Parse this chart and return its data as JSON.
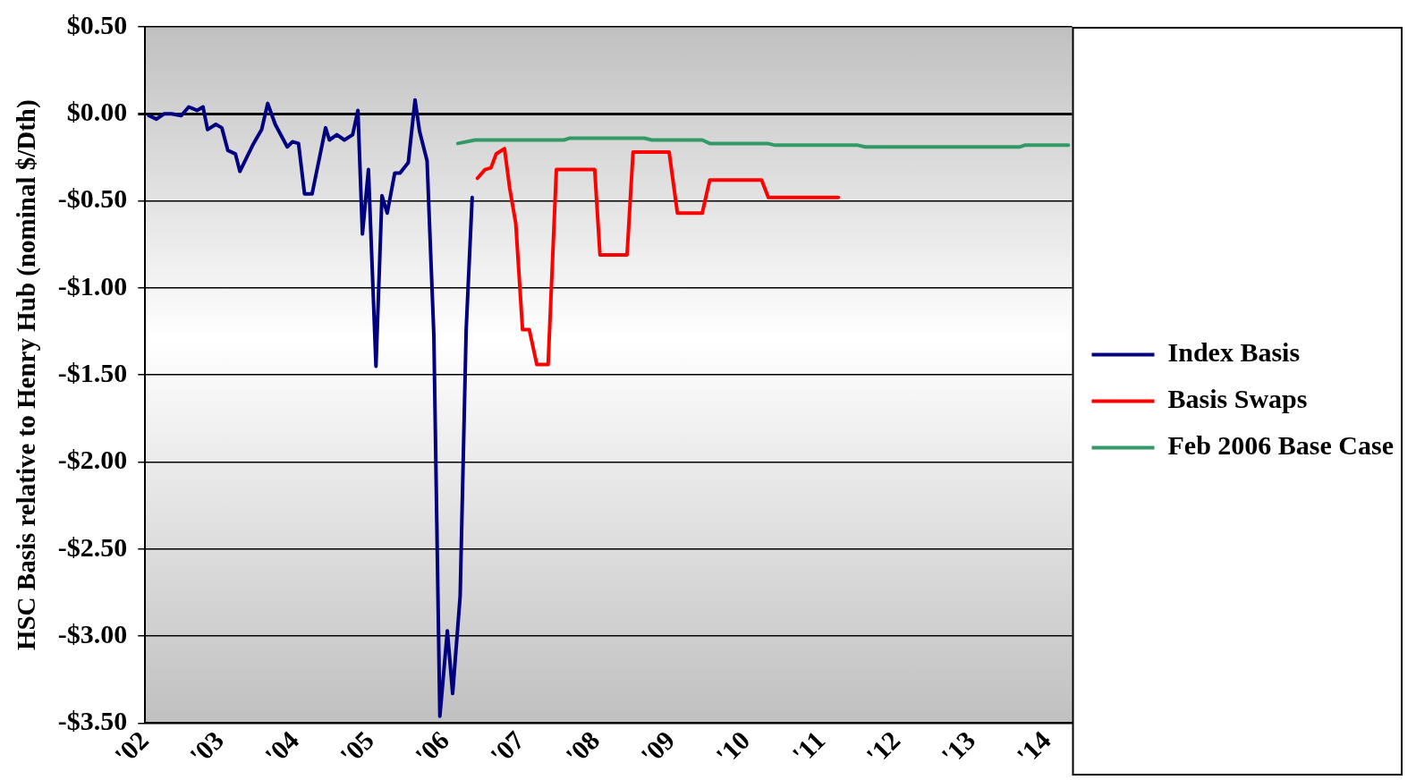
{
  "chart_data": {
    "type": "line",
    "ylabel": "HSC Basis relative to Henry Hub (nominal $/Dth)",
    "xlim": [
      2002,
      2014.33
    ],
    "xticks": [
      {
        "value": 2002,
        "label": "'02"
      },
      {
        "value": 2003,
        "label": "'03"
      },
      {
        "value": 2004,
        "label": "'04"
      },
      {
        "value": 2005,
        "label": "'05"
      },
      {
        "value": 2006,
        "label": "'06"
      },
      {
        "value": 2007,
        "label": "'07"
      },
      {
        "value": 2008,
        "label": "'08"
      },
      {
        "value": 2009,
        "label": "'09"
      },
      {
        "value": 2010,
        "label": "'10"
      },
      {
        "value": 2011,
        "label": "'11"
      },
      {
        "value": 2012,
        "label": "'12"
      },
      {
        "value": 2013,
        "label": "'13"
      },
      {
        "value": 2014,
        "label": "'14"
      }
    ],
    "ylim": [
      -3.5,
      0.5
    ],
    "yticks": [
      {
        "value": 0.5,
        "label": "$0.50"
      },
      {
        "value": 0,
        "label": "$0.00"
      },
      {
        "value": -0.5,
        "label": "-$0.50"
      },
      {
        "value": -1,
        "label": "-$1.00"
      },
      {
        "value": -1.5,
        "label": "-$1.50"
      },
      {
        "value": -2,
        "label": "-$2.00"
      },
      {
        "value": -2.5,
        "label": "-$2.50"
      },
      {
        "value": -3,
        "label": "-$3.00"
      },
      {
        "value": -3.5,
        "label": "-$3.50"
      }
    ],
    "grid": "y",
    "legend": "right",
    "marker": "none",
    "line_style": "solid",
    "series": [
      {
        "name": "Index Basis",
        "color": "#000080",
        "x": [
          2002.05,
          2002.15,
          2002.25,
          2002.35,
          2002.48,
          2002.58,
          2002.69,
          2002.77,
          2002.83,
          2002.94,
          2003.02,
          2003.1,
          2003.2,
          2003.26,
          2003.43,
          2003.55,
          2003.63,
          2003.73,
          2003.89,
          2003.96,
          2004.04,
          2004.12,
          2004.22,
          2004.4,
          2004.45,
          2004.55,
          2004.65,
          2004.76,
          2004.83,
          2004.89,
          2004.97,
          2005.07,
          2005.15,
          2005.22,
          2005.32,
          2005.39,
          2005.5,
          2005.59,
          2005.65,
          2005.75,
          2005.84,
          2005.92,
          2006.02,
          2006.09,
          2006.19,
          2006.27,
          2006.35
        ],
        "values": [
          -0.01,
          -0.03,
          0,
          0,
          -0.01,
          0.04,
          0.02,
          0.04,
          -0.09,
          -0.06,
          -0.08,
          -0.21,
          -0.23,
          -0.33,
          -0.18,
          -0.09,
          0.06,
          -0.06,
          -0.19,
          -0.16,
          -0.17,
          -0.46,
          -0.46,
          -0.08,
          -0.15,
          -0.12,
          -0.15,
          -0.12,
          0.02,
          -0.69,
          -0.32,
          -1.45,
          -0.47,
          -0.57,
          -0.34,
          -0.34,
          -0.28,
          0.08,
          -0.1,
          -0.27,
          -1.27,
          -3.46,
          -2.97,
          -3.33,
          -2.77,
          -1.24,
          -0.48
        ]
      },
      {
        "name": "Basis Swaps",
        "color": "#ff0000",
        "x": [
          2006.42,
          2006.52,
          2006.6,
          2006.67,
          2006.78,
          2006.85,
          2006.93,
          2007.02,
          2007.11,
          2007.21,
          2007.36,
          2007.47,
          2007.98,
          2008.05,
          2008.41,
          2008.49,
          2008.97,
          2009.08,
          2009.41,
          2009.51,
          2010.2,
          2010.29,
          2011.22
        ],
        "values": [
          -0.37,
          -0.32,
          -0.31,
          -0.23,
          -0.2,
          -0.43,
          -0.63,
          -1.24,
          -1.24,
          -1.44,
          -1.44,
          -0.32,
          -0.32,
          -0.81,
          -0.81,
          -0.22,
          -0.22,
          -0.57,
          -0.57,
          -0.38,
          -0.38,
          -0.48,
          -0.48
        ]
      },
      {
        "name": "Feb 2006 Base Case",
        "color": "#339966",
        "x": [
          2006.16,
          2006.39,
          2007.57,
          2007.64,
          2008.64,
          2008.74,
          2009.41,
          2009.51,
          2010.28,
          2010.38,
          2011.48,
          2011.58,
          2013.63,
          2013.7,
          2014.28
        ],
        "values": [
          -0.17,
          -0.15,
          -0.15,
          -0.14,
          -0.14,
          -0.15,
          -0.15,
          -0.17,
          -0.17,
          -0.18,
          -0.18,
          -0.19,
          -0.19,
          -0.18,
          -0.18
        ]
      }
    ]
  }
}
